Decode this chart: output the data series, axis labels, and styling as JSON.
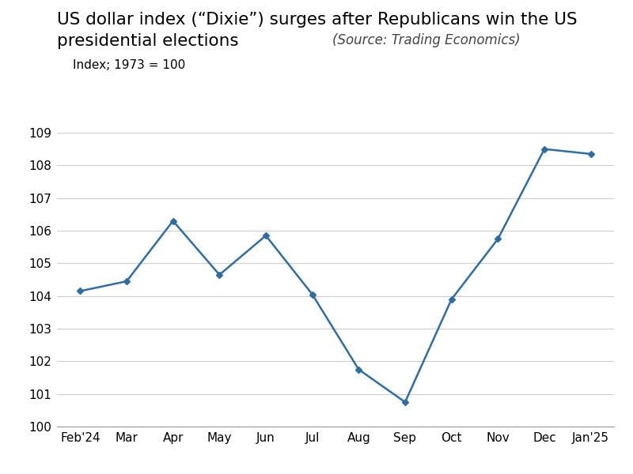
{
  "x_labels": [
    "Feb'24",
    "Mar",
    "Apr",
    "May",
    "Jun",
    "Jul",
    "Aug",
    "Sep",
    "Oct",
    "Nov",
    "Dec",
    "Jan'25"
  ],
  "y_values": [
    104.15,
    104.45,
    106.3,
    104.65,
    105.85,
    104.05,
    101.75,
    100.75,
    103.9,
    105.75,
    108.5,
    108.35
  ],
  "line_color": "#2E6DA4",
  "marker_style": "D",
  "marker_size": 4,
  "marker_color": "#2E6DA4",
  "ylim": [
    100,
    109
  ],
  "yticks": [
    100,
    101,
    102,
    103,
    104,
    105,
    106,
    107,
    108,
    109
  ],
  "title_line1": "US dollar index (“Dixie”) surges after Republicans win the US",
  "title_line2": "presidential elections",
  "source_text": "(Source: Trading Economics)",
  "subtitle": "Index; 1973 = 100",
  "title_fontsize": 15.5,
  "subtitle_fontsize": 11,
  "source_fontsize": 12,
  "axis_fontsize": 11,
  "background_color": "#FFFFFF",
  "plot_bg_color": "#FFFFFF",
  "grid_color": "#CCCCCC",
  "line_width": 1.8
}
